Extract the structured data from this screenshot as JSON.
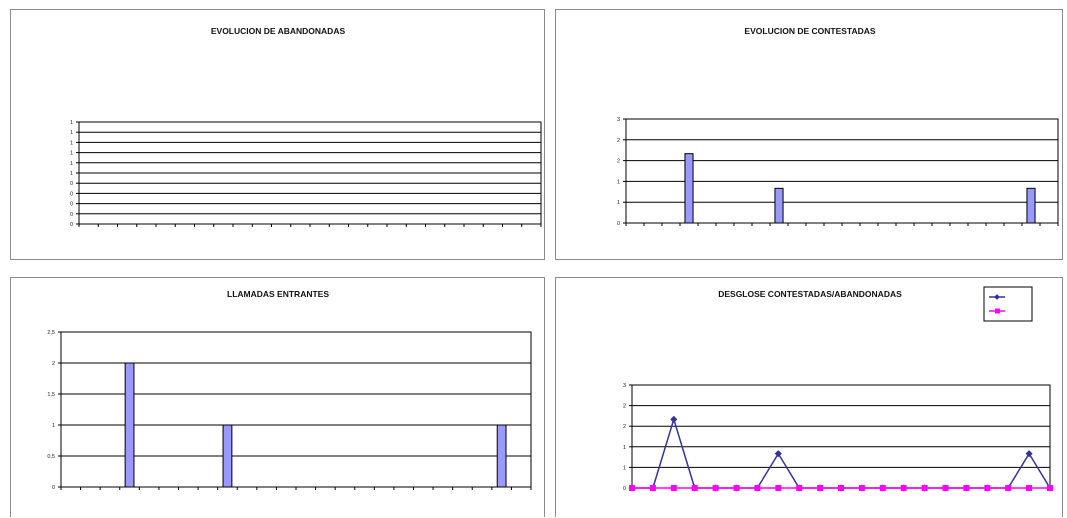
{
  "chart_data": [
    {
      "type": "bar",
      "title": "EVOLUCION DE ABANDONADAS",
      "ylim": [
        0,
        1
      ],
      "y_ticks": [
        "1",
        "1",
        "1",
        "1",
        "1",
        "1",
        "0",
        "0",
        "0",
        "0",
        "0"
      ],
      "categories_count": 24,
      "values": [],
      "grid": true,
      "bar_color": "#9999ff"
    },
    {
      "type": "bar",
      "title": "EVOLUCION DE CONTESTADAS",
      "ylim": [
        0,
        3
      ],
      "y_ticks": [
        "3",
        "2",
        "2",
        "1",
        "1",
        "0"
      ],
      "categories_count": 24,
      "values": [
        0,
        0,
        0,
        2,
        0,
        0,
        0,
        0,
        1,
        0,
        0,
        0,
        0,
        0,
        0,
        0,
        0,
        0,
        0,
        0,
        0,
        0,
        1,
        0
      ],
      "grid": true,
      "bar_color": "#9999ff"
    },
    {
      "type": "bar",
      "title": "LLAMADAS ENTRANTES",
      "ylim": [
        0,
        2.5
      ],
      "y_ticks": [
        "2,5",
        "2",
        "1,5",
        "1",
        "0,5",
        "0"
      ],
      "categories_count": 24,
      "values": [
        0,
        0,
        0,
        2,
        0,
        0,
        0,
        0,
        1,
        0,
        0,
        0,
        0,
        0,
        0,
        0,
        0,
        0,
        0,
        0,
        0,
        0,
        1,
        0
      ],
      "grid": true,
      "bar_color": "#9999ff"
    },
    {
      "type": "line",
      "title": "DESGLOSE CONTESTADAS/ABANDONADAS",
      "ylim": [
        0,
        3
      ],
      "y_ticks": [
        "3",
        "2",
        "2",
        "1",
        "1",
        "0"
      ],
      "grid": true,
      "legend_position": "top-right",
      "series": [
        {
          "name": "",
          "color": "#333399",
          "values": [
            0,
            0,
            2,
            0,
            0,
            0,
            0,
            1,
            0,
            0,
            0,
            0,
            0,
            0,
            0,
            0,
            0,
            0,
            0,
            1,
            0
          ]
        },
        {
          "name": "",
          "color": "#ff00ff",
          "values": [
            0,
            0,
            0,
            0,
            0,
            0,
            0,
            0,
            0,
            0,
            0,
            0,
            0,
            0,
            0,
            0,
            0,
            0,
            0,
            0,
            0
          ]
        }
      ]
    }
  ]
}
